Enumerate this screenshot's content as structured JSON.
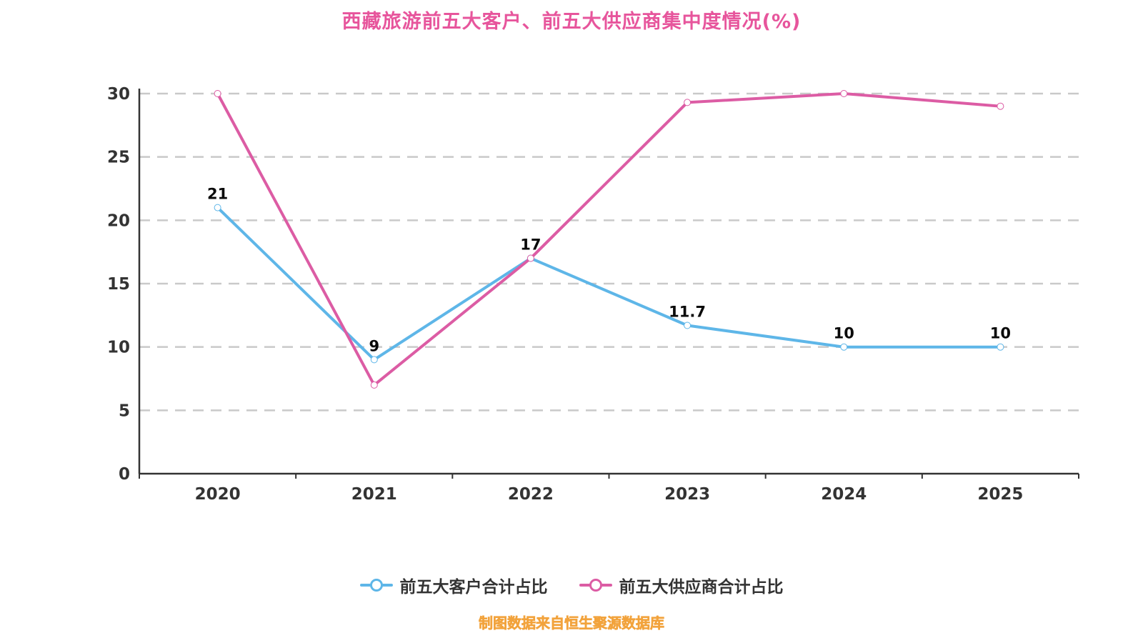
{
  "title": "西藏旅游前五大客户、前五大供应商集中度情况(%)",
  "footnote": "制图数据来自恒生聚源数据库",
  "colors": {
    "customers_line": "#5EB6E8",
    "suppliers_line": "#DC5CA4",
    "title": "#E7559C",
    "footnote": "#F2A33C",
    "axis": "#333333",
    "gridline": "#C9C9C9",
    "point_label": "#0A0A0A"
  },
  "legend": {
    "items": [
      {
        "label": "前五大客户合计占比",
        "color": "#5EB6E8"
      },
      {
        "label": "前五大供应商合计占比",
        "color": "#DC5CA4"
      }
    ]
  },
  "chart_data": {
    "type": "line",
    "title": "西藏旅游前五大客户、前五大供应商集中度情况(%)",
    "categories": [
      "2020",
      "2021",
      "2022",
      "2023",
      "2024",
      "2025"
    ],
    "series": [
      {
        "name": "前五大客户合计占比",
        "color": "#5EB6E8",
        "values": [
          21,
          9,
          17,
          11.7,
          10,
          10
        ],
        "labels": [
          "21",
          "9",
          "17",
          "11.7",
          "10",
          "10"
        ],
        "show_labels": true
      },
      {
        "name": "前五大供应商合计占比",
        "color": "#DC5CA4",
        "values": [
          30,
          7,
          17,
          29.3,
          30,
          29
        ],
        "show_labels": false
      }
    ],
    "xlabel": "",
    "ylabel": "",
    "ylim": [
      0,
      30
    ],
    "ytick_step": 5,
    "grid": "horizontal dashed",
    "legend_position": "bottom"
  }
}
